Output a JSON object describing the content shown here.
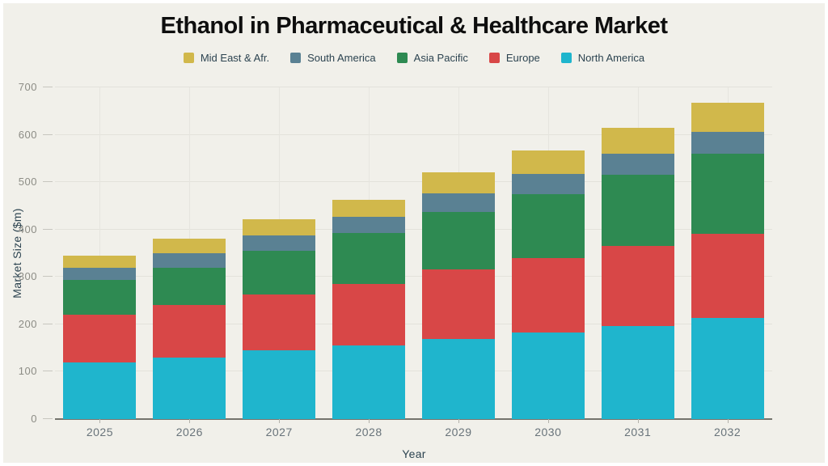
{
  "title": "Ethanol in Pharmaceutical & Healthcare Market",
  "colors": {
    "background": "#f1f0ea",
    "frame": "#ffffff",
    "grid_h": "#e3e2db",
    "grid_v": "#e6e5df",
    "axis_line": "#74746d",
    "tick_mark": "#c7c6bf",
    "tick_text": "#8c8c85",
    "year_text": "#68737a",
    "label_text": "#2c4350",
    "title_text": "#0e0e0e"
  },
  "chart_data": {
    "type": "bar",
    "stacked": true,
    "title": "Ethanol in Pharmaceutical & Healthcare Market",
    "xlabel": "Year",
    "ylabel": "Market Size ($m)",
    "ylim": [
      0,
      700
    ],
    "yticks": [
      0,
      100,
      200,
      300,
      400,
      500,
      600,
      700
    ],
    "grid": true,
    "legend_position": "top",
    "categories": [
      "2025",
      "2026",
      "2027",
      "2028",
      "2029",
      "2030",
      "2031",
      "2032"
    ],
    "series": [
      {
        "name": "North America",
        "color": "#1fb5cd",
        "values": [
          120,
          130,
          145,
          155,
          169,
          183,
          197,
          214
        ]
      },
      {
        "name": "Europe",
        "color": "#d84747",
        "values": [
          100,
          110,
          118,
          130,
          146,
          157,
          168,
          177
        ]
      },
      {
        "name": "Asia Pacific",
        "color": "#2e8a52",
        "values": [
          73,
          80,
          92,
          107,
          122,
          134,
          150,
          169
        ]
      },
      {
        "name": "South America",
        "color": "#5a8193",
        "values": [
          27,
          30,
          33,
          35,
          39,
          43,
          45,
          46
        ]
      },
      {
        "name": "Mid East & Afr.",
        "color": "#d1b84b",
        "values": [
          25,
          30,
          34,
          36,
          44,
          50,
          54,
          62
        ]
      }
    ],
    "totals": [
      345,
      380,
      422,
      463,
      520,
      567,
      614,
      668
    ],
    "legend": [
      "Mid East & Afr.",
      "South America",
      "Asia Pacific",
      "Europe",
      "North America"
    ]
  }
}
